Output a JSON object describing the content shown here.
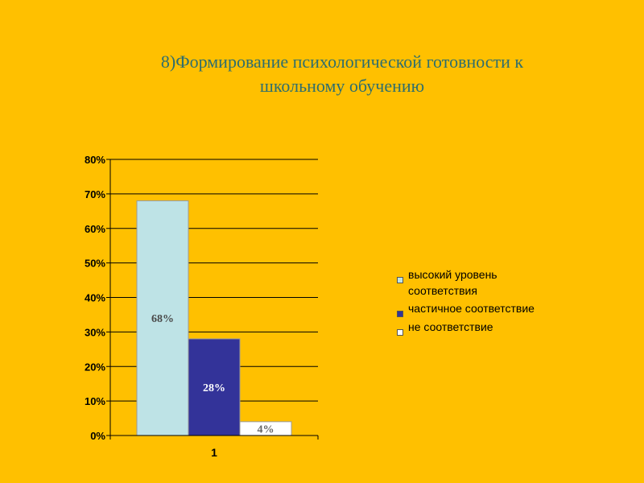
{
  "slide": {
    "title": "8)Формирование психологической готовности к\nшкольному обучению"
  },
  "chart_data": {
    "type": "bar",
    "categories": [
      "1"
    ],
    "series": [
      {
        "name": "высокий уровень соответствия",
        "values": [
          68
        ],
        "label": "68%",
        "color": "#BEE3E6",
        "label_color": "#4A4A4A"
      },
      {
        "name": "частичное соответствие",
        "values": [
          28
        ],
        "label": "28%",
        "color": "#333399",
        "label_color": "#FFFFFF"
      },
      {
        "name": "не соответствие",
        "values": [
          4
        ],
        "label": "4%",
        "color": "#FFFFFF",
        "label_color": "#666666"
      }
    ],
    "yticks": [
      "0%",
      "10%",
      "20%",
      "30%",
      "40%",
      "50%",
      "60%",
      "70%",
      "80%"
    ],
    "ylim": [
      0,
      80
    ],
    "grid": true,
    "legend_position": "right"
  }
}
